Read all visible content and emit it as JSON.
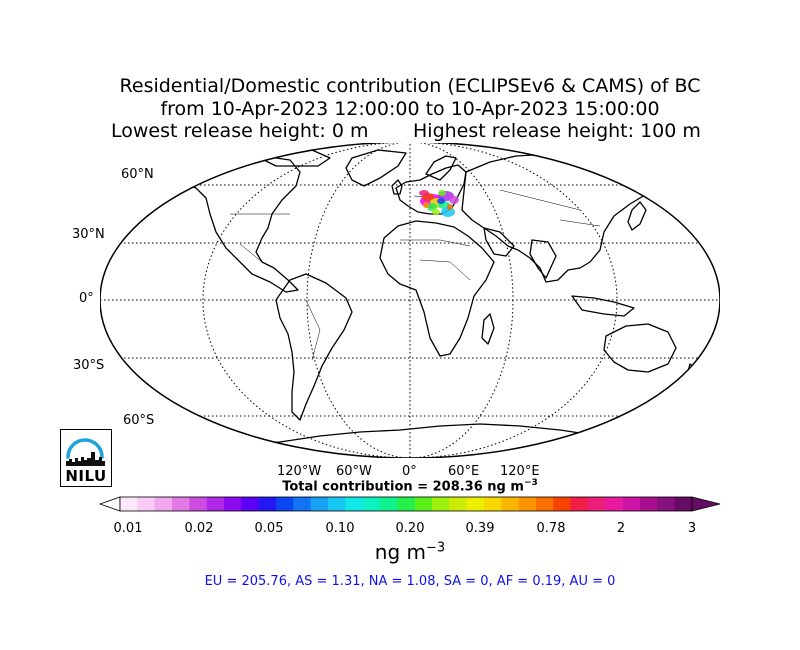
{
  "title": {
    "line1": "Residential/Domestic contribution (ECLIPSEv6 & CAMS) of BC",
    "line2": "from 10-Apr-2023 12:00:00 to 10-Apr-2023 15:00:00",
    "lowest": "Lowest release height: 0 m",
    "highest": "Highest release height: 100 m"
  },
  "map": {
    "lat_labels": [
      "60°N",
      "30°N",
      "0°",
      "30°S",
      "60°S"
    ],
    "lon_labels": [
      "120°W",
      "60°W",
      "0°",
      "60°E",
      "120°E"
    ],
    "total_prefix": "Total contribution = 208.36 ng m",
    "total_exp": "−3",
    "plume_region": "Europe"
  },
  "colorbar": {
    "ticks": [
      "0.01",
      "0.02",
      "0.05",
      "0.10",
      "0.20",
      "0.39",
      "0.78",
      "2",
      "3"
    ],
    "colors": [
      "#fde7fb",
      "#f8cbf4",
      "#f0a8ee",
      "#e27ae6",
      "#cc4be0",
      "#b228e8",
      "#8e0af0",
      "#5e00f5",
      "#2418f2",
      "#0c46f0",
      "#1572f4",
      "#1aa0f4",
      "#19c8f0",
      "#12e6e6",
      "#0ff0c0",
      "#10f08c",
      "#22ef4a",
      "#5cf01a",
      "#9cf00e",
      "#ccec08",
      "#eeee00",
      "#f8d800",
      "#fbb600",
      "#fa9400",
      "#f86e00",
      "#f64400",
      "#f01f4a",
      "#ec1f7a",
      "#e81aa0",
      "#cc14a6",
      "#a8108e",
      "#86107c",
      "#660c66"
    ],
    "under_color": "#ffffff",
    "over_color": "#660c66",
    "unit_base": "ng m",
    "unit_exp": "−3"
  },
  "regions_text": "EU = 205.76,  AS = 1.31,  NA = 1.08,  SA = 0,  AF = 0.19,  AU = 0",
  "logo": {
    "text": "NILU",
    "icon": "nilu-logo-icon",
    "accent": "#1ea3dc"
  }
}
